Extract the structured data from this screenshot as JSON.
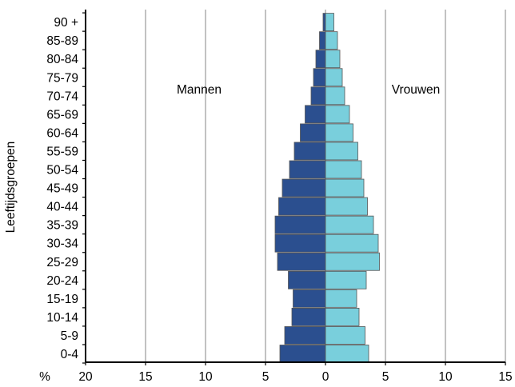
{
  "chart_data": {
    "type": "bar",
    "orientation": "horizontal",
    "layout": "population-pyramid",
    "ylabel": "Leeftijdsgroepen",
    "x_unit_label": "%",
    "xlim": [
      -20,
      15
    ],
    "x_ticks": [
      -20,
      -15,
      -10,
      -5,
      0,
      5,
      10,
      15
    ],
    "x_tick_labels": [
      "20",
      "15",
      "10",
      "5",
      "0",
      "5",
      "10",
      "15"
    ],
    "grid": "vertical",
    "categories": [
      "0-4",
      "5-9",
      "10-14",
      "15-19",
      "20-24",
      "25-29",
      "30-34",
      "35-39",
      "40-44",
      "45-49",
      "50-54",
      "55-59",
      "60-64",
      "65-69",
      "70-74",
      "75-79",
      "80-84",
      "85-89",
      "90 +"
    ],
    "series": [
      {
        "name": "Mannen",
        "side": "left",
        "color": "#2b4f8f",
        "values": [
          3.8,
          3.4,
          2.8,
          2.7,
          3.1,
          4.0,
          4.2,
          4.2,
          3.9,
          3.6,
          3.0,
          2.6,
          2.1,
          1.7,
          1.2,
          1.0,
          0.8,
          0.5,
          0.2
        ]
      },
      {
        "name": "Vrouwen",
        "side": "right",
        "color": "#79cfdc",
        "values": [
          3.6,
          3.3,
          2.8,
          2.6,
          3.4,
          4.5,
          4.4,
          4.0,
          3.5,
          3.2,
          3.0,
          2.7,
          2.3,
          2.0,
          1.6,
          1.4,
          1.2,
          1.0,
          0.7
        ]
      }
    ],
    "bar_outline_color": "#555555",
    "grid_color": "#999999"
  }
}
